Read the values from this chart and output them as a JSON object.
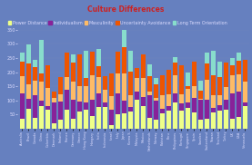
{
  "title": "Culture Differences",
  "title_color": "#CC2222",
  "background_color": "#6680BF",
  "plot_bg_color": "#6680BF",
  "legend_labels": [
    "Power Distance",
    "Individualism",
    "Masculinity",
    "Uncertainty Avoidance",
    "Long Term Orientation"
  ],
  "colors": [
    "#EEFF88",
    "#882299",
    "#FFBB66",
    "#EE5500",
    "#88DDCC"
  ],
  "countries": [
    "Australia",
    "Brazil",
    "Canada",
    "China",
    "Colombia",
    "Denmark",
    "Finland",
    "France",
    "Germany",
    "Greece",
    "Hong Kong",
    "Hungary",
    "India",
    "Indonesia",
    "Israel",
    "Italy",
    "Japan",
    "Korea S.",
    "Malaysia",
    "Mexico",
    "Netherlands",
    "Norway",
    "Pakistan",
    "Peru",
    "Philippines",
    "Portugal",
    "Singapore",
    "Spain",
    "Sweden",
    "Switzerland",
    "Taiwan",
    "Thailand",
    "Turkey",
    "UK",
    "USA",
    "Venezuela"
  ],
  "data": {
    "Power Distance": [
      36,
      69,
      39,
      80,
      67,
      18,
      33,
      68,
      35,
      60,
      68,
      46,
      77,
      78,
      13,
      50,
      54,
      60,
      104,
      81,
      38,
      31,
      55,
      64,
      94,
      63,
      74,
      57,
      31,
      34,
      58,
      64,
      66,
      35,
      40,
      81
    ],
    "Individualism": [
      90,
      38,
      80,
      20,
      13,
      74,
      63,
      71,
      67,
      35,
      25,
      55,
      48,
      14,
      54,
      76,
      46,
      18,
      26,
      30,
      80,
      69,
      14,
      16,
      32,
      27,
      20,
      51,
      71,
      68,
      17,
      20,
      37,
      89,
      91,
      12
    ],
    "Masculinity": [
      61,
      49,
      52,
      66,
      64,
      16,
      26,
      43,
      66,
      57,
      57,
      88,
      56,
      46,
      47,
      70,
      95,
      39,
      50,
      69,
      14,
      8,
      50,
      42,
      64,
      31,
      48,
      42,
      5,
      70,
      45,
      34,
      45,
      66,
      62,
      73
    ],
    "Uncertainty Avoidance": [
      51,
      76,
      48,
      30,
      80,
      23,
      59,
      86,
      65,
      112,
      29,
      82,
      40,
      48,
      81,
      75,
      92,
      85,
      36,
      82,
      53,
      50,
      70,
      87,
      44,
      104,
      8,
      86,
      29,
      58,
      69,
      64,
      85,
      35,
      46,
      76
    ],
    "Long Term Orientation": [
      31,
      65,
      23,
      118,
      0,
      0,
      0,
      0,
      31,
      0,
      96,
      0,
      61,
      0,
      0,
      0,
      80,
      75,
      0,
      0,
      44,
      20,
      0,
      0,
      19,
      0,
      48,
      0,
      33,
      40,
      87,
      56,
      0,
      25,
      29,
      0
    ]
  },
  "ylim": [
    0,
    350
  ],
  "ytick_values": [
    50,
    100,
    150,
    200,
    250,
    300,
    350
  ],
  "tick_color": "#DDDDFF",
  "grid_color": "#7788BB",
  "bar_width": 0.75,
  "legend_fontsize": 3.5,
  "title_fontsize": 5.5,
  "xtick_fontsize": 2.5,
  "ytick_fontsize": 3.5
}
